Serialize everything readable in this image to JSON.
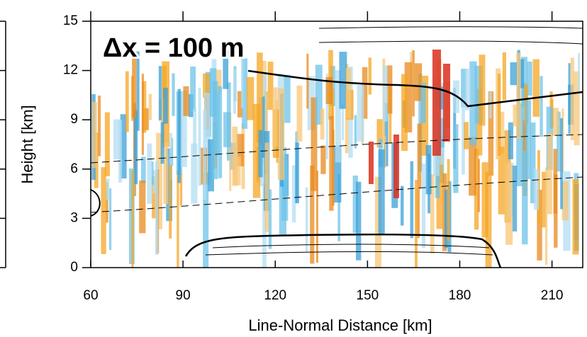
{
  "chart_data": {
    "type": "contour",
    "annotation": "Δx = 100 m",
    "x_label": "Line-Normal Distance [km]",
    "y_label": "Height [km]",
    "xlim": [
      60,
      220
    ],
    "xticks": [
      60,
      90,
      120,
      150,
      180,
      210
    ],
    "ylim": [
      0,
      15
    ],
    "yticks": [
      0,
      3,
      6,
      9,
      12,
      15
    ]
  }
}
